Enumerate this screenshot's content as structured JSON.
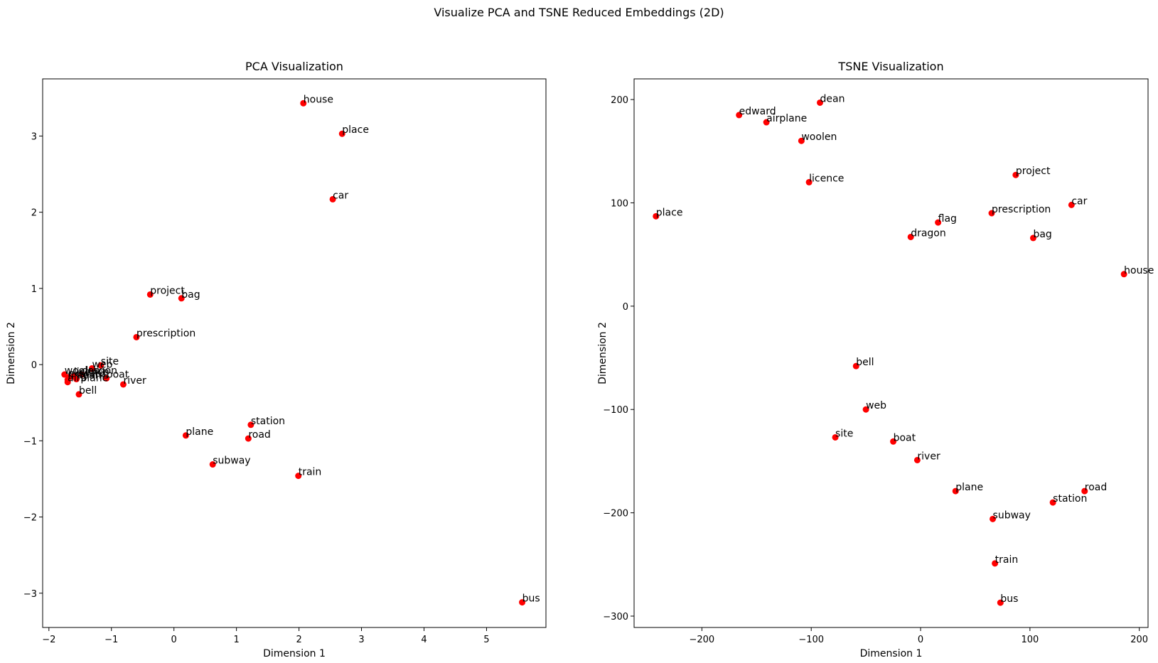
{
  "suptitle": "Visualize PCA and TSNE Reduced Embeddings (2D)",
  "colors": {
    "point": "#ff0000",
    "axis": "#000000"
  },
  "chart_data": [
    {
      "type": "scatter",
      "title": "PCA Visualization",
      "xlabel": "Dimension 1",
      "ylabel": "Dimension 2",
      "xlim": [
        -2.1,
        5.95
      ],
      "ylim": [
        -3.45,
        3.75
      ],
      "xticks": [
        -2,
        -1,
        0,
        1,
        2,
        3,
        4,
        5
      ],
      "yticks": [
        -3,
        -2,
        -1,
        0,
        1,
        2,
        3
      ],
      "grid": false,
      "marker_color": "#ff0000",
      "points": [
        {
          "label": "house",
          "x": 2.07,
          "y": 3.43
        },
        {
          "label": "place",
          "x": 2.69,
          "y": 3.03
        },
        {
          "label": "car",
          "x": 2.54,
          "y": 2.17
        },
        {
          "label": "project",
          "x": -0.38,
          "y": 0.92
        },
        {
          "label": "bag",
          "x": 0.12,
          "y": 0.87
        },
        {
          "label": "prescription",
          "x": -0.6,
          "y": 0.36
        },
        {
          "label": "site",
          "x": -1.17,
          "y": -0.01
        },
        {
          "label": "web",
          "x": -1.31,
          "y": -0.05
        },
        {
          "label": "dragon",
          "x": -1.47,
          "y": -0.13
        },
        {
          "label": "boat",
          "x": -1.08,
          "y": -0.18
        },
        {
          "label": "woolen",
          "x": -1.75,
          "y": -0.13
        },
        {
          "label": "licence",
          "x": -1.6,
          "y": -0.15
        },
        {
          "label": "edward",
          "x": -1.68,
          "y": -0.17
        },
        {
          "label": "flag",
          "x": -1.7,
          "y": -0.2
        },
        {
          "label": "dean",
          "x": -1.56,
          "y": -0.19
        },
        {
          "label": "airplane",
          "x": -1.7,
          "y": -0.23
        },
        {
          "label": "river",
          "x": -0.81,
          "y": -0.26
        },
        {
          "label": "bell",
          "x": -1.52,
          "y": -0.39
        },
        {
          "label": "plane",
          "x": 0.19,
          "y": -0.93
        },
        {
          "label": "station",
          "x": 1.23,
          "y": -0.79
        },
        {
          "label": "road",
          "x": 1.19,
          "y": -0.97
        },
        {
          "label": "subway",
          "x": 0.62,
          "y": -1.31
        },
        {
          "label": "train",
          "x": 1.99,
          "y": -1.46
        },
        {
          "label": "bus",
          "x": 5.57,
          "y": -3.12
        }
      ]
    },
    {
      "type": "scatter",
      "title": "TSNE Visualization",
      "xlabel": "Dimension 1",
      "ylabel": "Dimension 2",
      "xlim": [
        -262,
        208
      ],
      "ylim": [
        -311,
        220
      ],
      "xticks": [
        -200,
        -100,
        0,
        100,
        200
      ],
      "yticks": [
        -300,
        -200,
        -100,
        0,
        100,
        200
      ],
      "grid": false,
      "marker_color": "#ff0000",
      "points": [
        {
          "label": "dean",
          "x": -92,
          "y": 197
        },
        {
          "label": "edward",
          "x": -166,
          "y": 185
        },
        {
          "label": "airplane",
          "x": -141,
          "y": 178
        },
        {
          "label": "woolen",
          "x": -109,
          "y": 160
        },
        {
          "label": "licence",
          "x": -102,
          "y": 120
        },
        {
          "label": "place",
          "x": -242,
          "y": 87
        },
        {
          "label": "project",
          "x": 87,
          "y": 127
        },
        {
          "label": "car",
          "x": 138,
          "y": 98
        },
        {
          "label": "prescription",
          "x": 65,
          "y": 90
        },
        {
          "label": "flag",
          "x": 16,
          "y": 81
        },
        {
          "label": "dragon",
          "x": -9,
          "y": 67
        },
        {
          "label": "bag",
          "x": 103,
          "y": 66
        },
        {
          "label": "house",
          "x": 186,
          "y": 31
        },
        {
          "label": "bell",
          "x": -59,
          "y": -58
        },
        {
          "label": "web",
          "x": -50,
          "y": -100
        },
        {
          "label": "site",
          "x": -78,
          "y": -127
        },
        {
          "label": "boat",
          "x": -25,
          "y": -131
        },
        {
          "label": "river",
          "x": -3,
          "y": -149
        },
        {
          "label": "plane",
          "x": 32,
          "y": -179
        },
        {
          "label": "road",
          "x": 150,
          "y": -179
        },
        {
          "label": "station",
          "x": 121,
          "y": -190
        },
        {
          "label": "subway",
          "x": 66,
          "y": -206
        },
        {
          "label": "train",
          "x": 68,
          "y": -249
        },
        {
          "label": "bus",
          "x": 73,
          "y": -287
        }
      ]
    }
  ]
}
